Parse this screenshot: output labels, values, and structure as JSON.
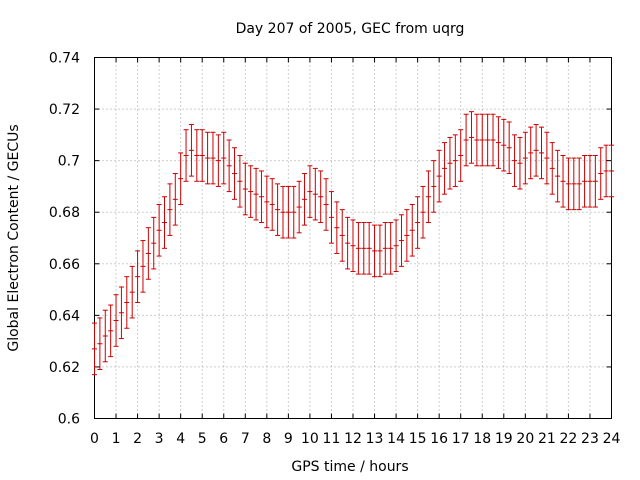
{
  "chart_data": {
    "type": "line",
    "subtype": "errorbars",
    "title": "Day 207 of 2005, GEC from uqrg",
    "xlabel": "GPS time / hours",
    "ylabel": "Global Electron Content / GECUs",
    "xlim": [
      0,
      24
    ],
    "ylim": [
      0.6,
      0.74
    ],
    "grid": true,
    "color": "#cc0000",
    "x_ticks": [
      "0",
      "1",
      "2",
      "3",
      "4",
      "5",
      "6",
      "7",
      "8",
      "9",
      "10",
      "11",
      "12",
      "13",
      "14",
      "15",
      "16",
      "17",
      "18",
      "19",
      "20",
      "21",
      "22",
      "23",
      "24"
    ],
    "y_ticks": [
      "0.6",
      "0.62",
      "0.64",
      "0.66",
      "0.68",
      "0.7",
      "0.72",
      "0.74"
    ],
    "x": [
      0,
      0.25,
      0.5,
      0.75,
      1,
      1.25,
      1.5,
      1.75,
      2,
      2.25,
      2.5,
      2.75,
      3,
      3.25,
      3.5,
      3.75,
      4,
      4.25,
      4.5,
      4.75,
      5,
      5.25,
      5.5,
      5.75,
      6,
      6.25,
      6.5,
      6.75,
      7,
      7.25,
      7.5,
      7.75,
      8,
      8.25,
      8.5,
      8.75,
      9,
      9.25,
      9.5,
      9.75,
      10,
      10.25,
      10.5,
      10.75,
      11,
      11.25,
      11.5,
      11.75,
      12,
      12.25,
      12.5,
      12.75,
      13,
      13.25,
      13.5,
      13.75,
      14,
      14.25,
      14.5,
      14.75,
      15,
      15.25,
      15.5,
      15.75,
      16,
      16.25,
      16.5,
      16.75,
      17,
      17.25,
      17.5,
      17.75,
      18,
      18.25,
      18.5,
      18.75,
      19,
      19.25,
      19.5,
      19.75,
      20,
      20.25,
      20.5,
      20.75,
      21,
      21.25,
      21.5,
      21.75,
      22,
      22.25,
      22.5,
      22.75,
      23,
      23.25,
      23.5,
      23.75,
      24
    ],
    "y": [
      0.627,
      0.629,
      0.632,
      0.634,
      0.638,
      0.641,
      0.645,
      0.649,
      0.655,
      0.659,
      0.664,
      0.668,
      0.673,
      0.676,
      0.681,
      0.685,
      0.693,
      0.702,
      0.704,
      0.702,
      0.702,
      0.701,
      0.701,
      0.7,
      0.701,
      0.698,
      0.695,
      0.692,
      0.689,
      0.688,
      0.687,
      0.686,
      0.684,
      0.683,
      0.681,
      0.68,
      0.68,
      0.68,
      0.682,
      0.685,
      0.688,
      0.687,
      0.686,
      0.683,
      0.678,
      0.674,
      0.671,
      0.668,
      0.667,
      0.666,
      0.666,
      0.666,
      0.665,
      0.665,
      0.666,
      0.666,
      0.667,
      0.669,
      0.671,
      0.673,
      0.676,
      0.68,
      0.686,
      0.69,
      0.694,
      0.697,
      0.699,
      0.7,
      0.702,
      0.708,
      0.709,
      0.708,
      0.708,
      0.708,
      0.708,
      0.707,
      0.706,
      0.705,
      0.7,
      0.699,
      0.701,
      0.703,
      0.704,
      0.703,
      0.701,
      0.697,
      0.694,
      0.692,
      0.691,
      0.691,
      0.691,
      0.692,
      0.692,
      0.692,
      0.695,
      0.696,
      0.696
    ],
    "err": 0.01
  }
}
